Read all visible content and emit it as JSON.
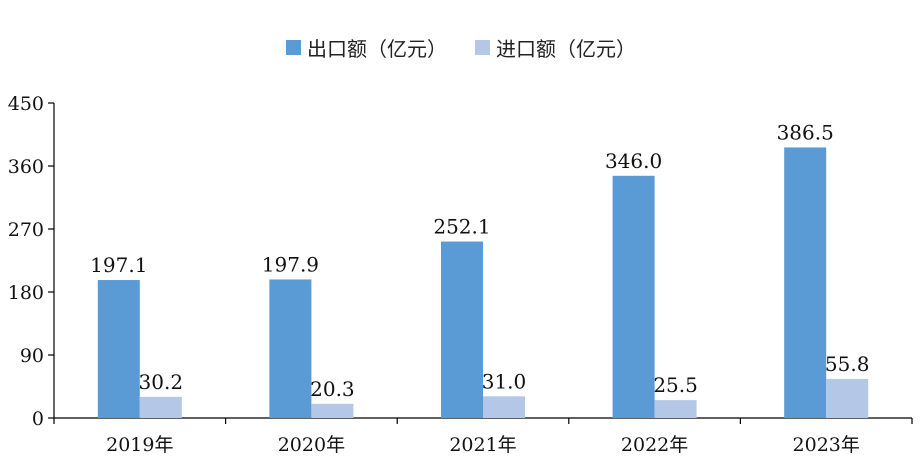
{
  "chart_data": {
    "type": "bar",
    "categories": [
      "2019年",
      "2020年",
      "2021年",
      "2022年",
      "2023年"
    ],
    "series": [
      {
        "name": "出口额（亿元）",
        "values": [
          197.1,
          197.9,
          252.1,
          346.0,
          386.5
        ],
        "labels": [
          "197.1",
          "197.9",
          "252.1",
          "346.0",
          "386.5"
        ],
        "color": "#5b9bd5"
      },
      {
        "name": "进口额（亿元）",
        "values": [
          30.2,
          20.3,
          31.0,
          25.5,
          55.8
        ],
        "labels": [
          "30.2",
          "20.3",
          "31.0",
          "25.5",
          "55.8"
        ],
        "color": "#b4c7e7"
      }
    ],
    "ylim": [
      0,
      450
    ],
    "yticks": [
      "0",
      "90",
      "180",
      "270",
      "360",
      "450"
    ],
    "legend": "top-center",
    "grid": false
  }
}
